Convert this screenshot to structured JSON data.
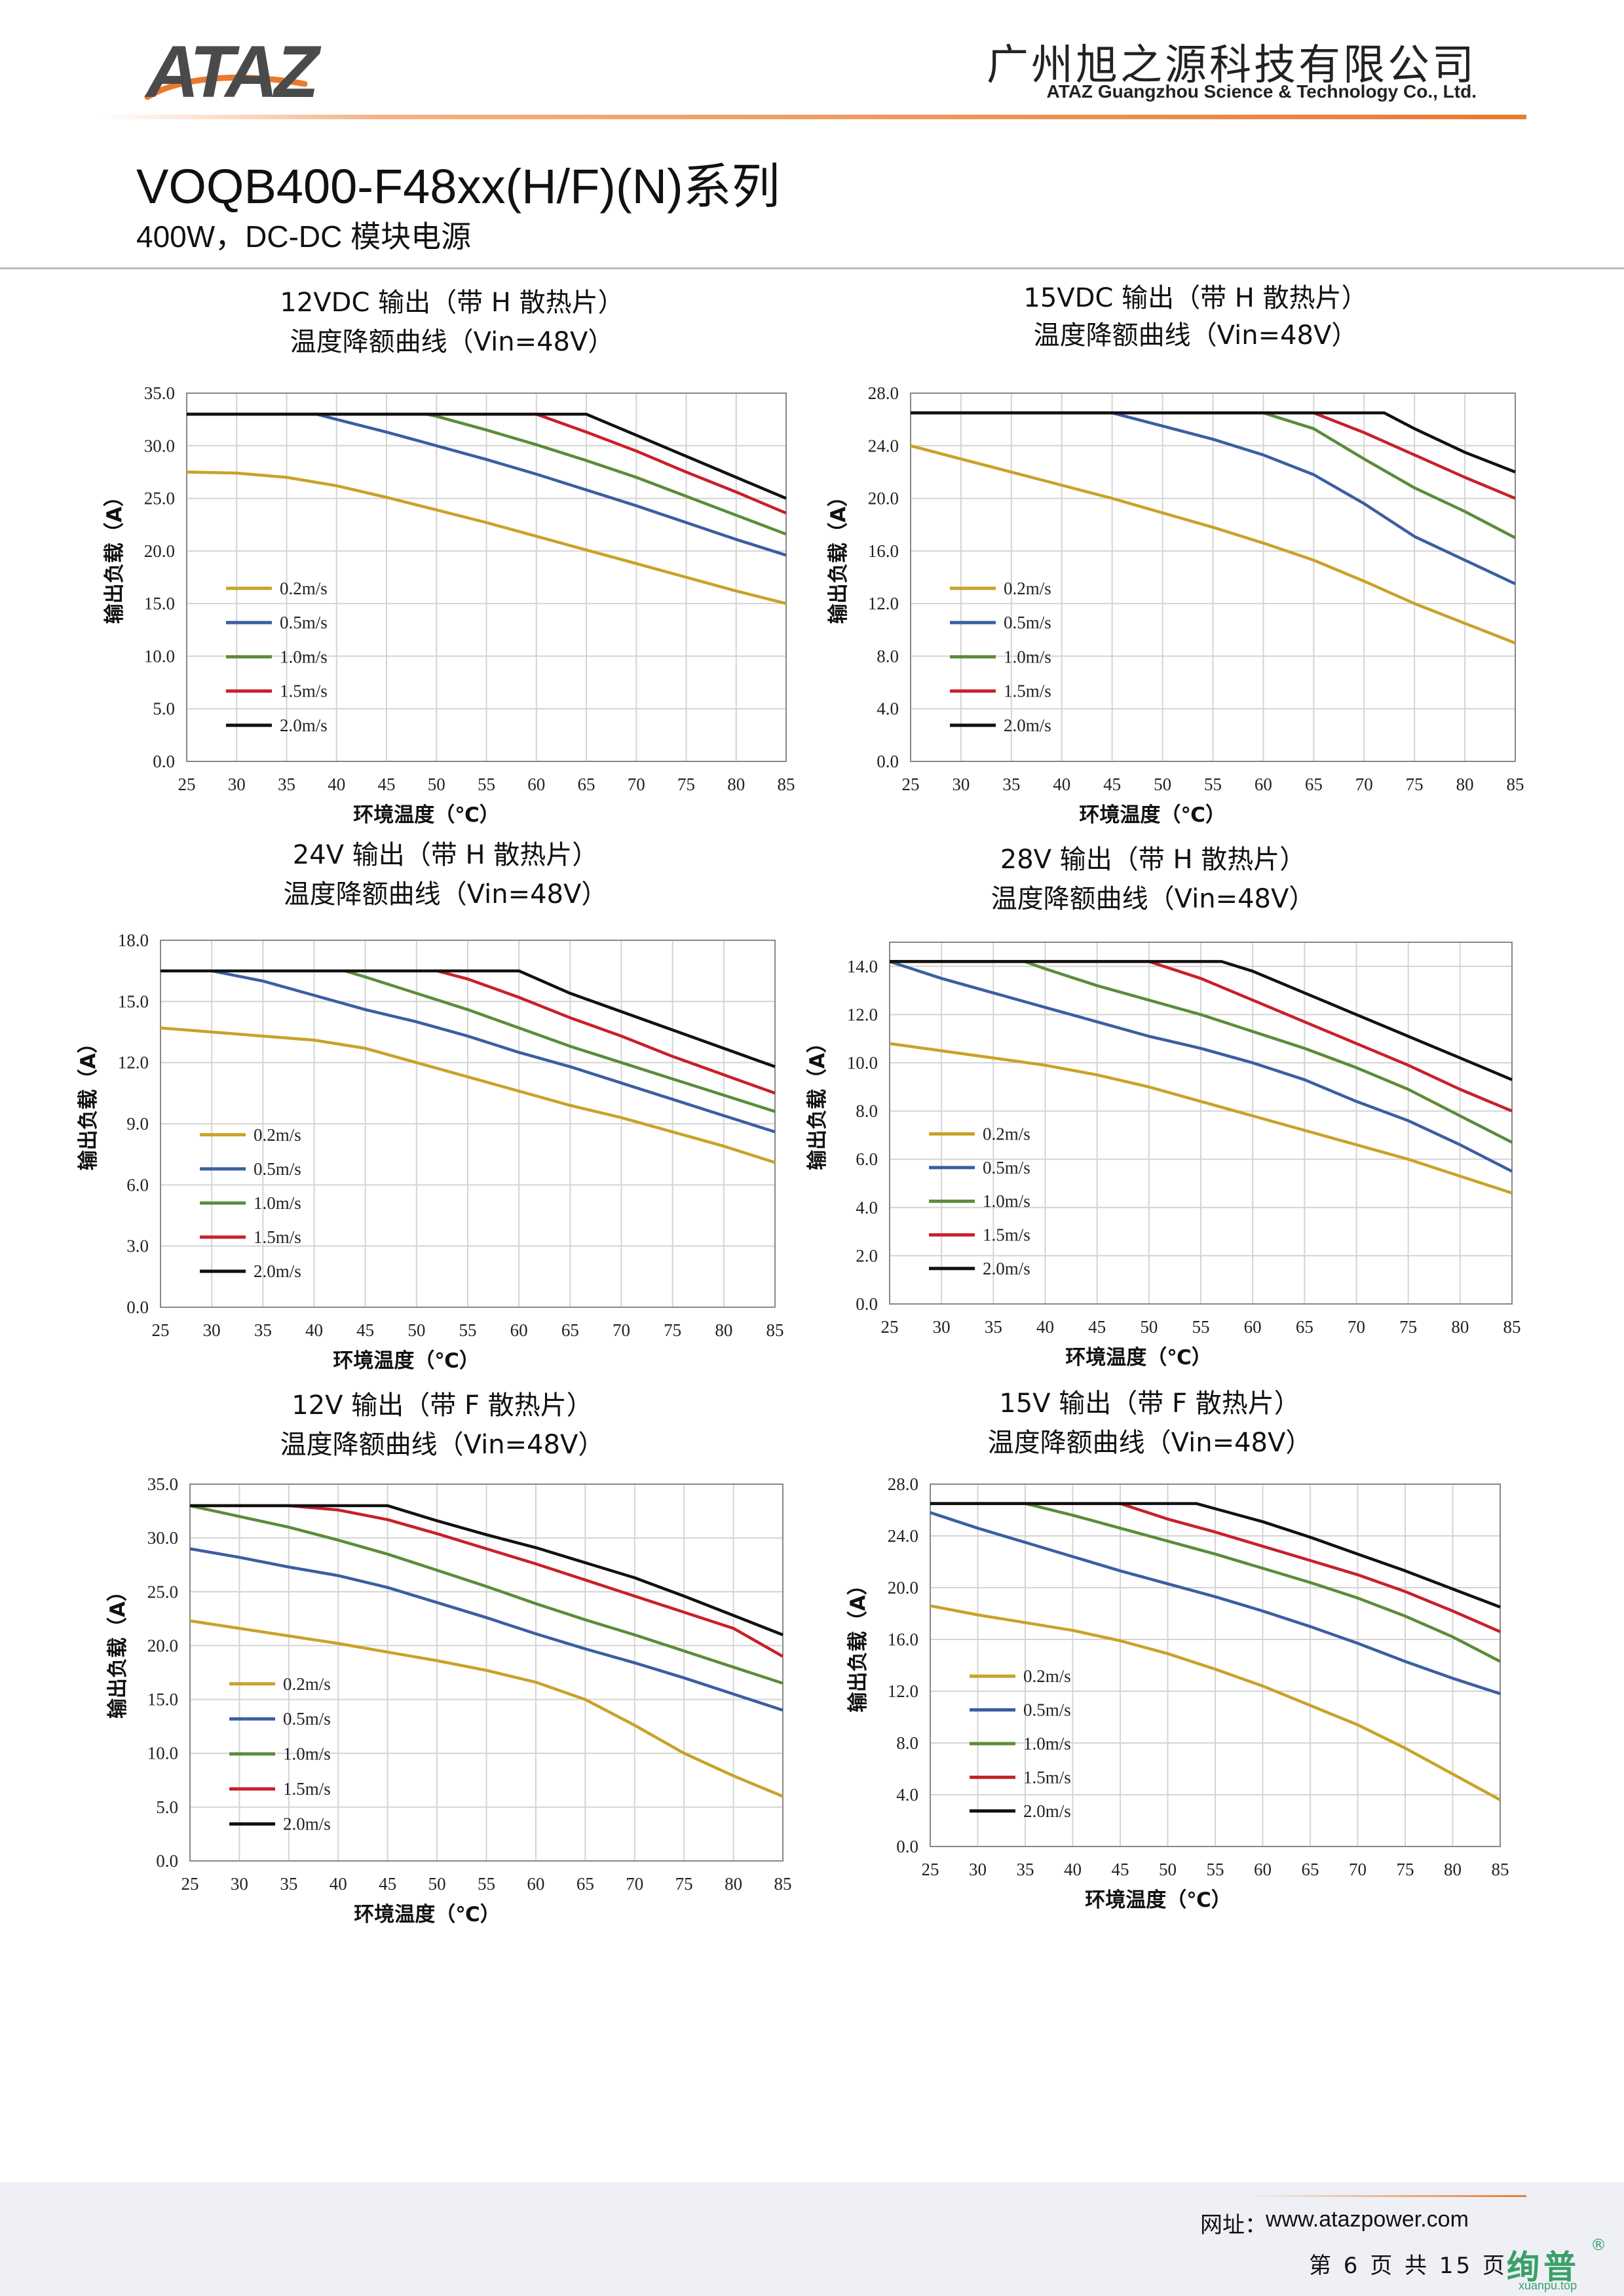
{
  "header": {
    "logo_text": "ATAZ",
    "company_cn": "广州旭之源科技有限公司",
    "company_en": "ATAZ Guangzhou Science & Technology Co., Ltd."
  },
  "document": {
    "series_title": "VOQB400-F48xx(H/F)(N)系列",
    "subtitle": "400W，DC-DC 模块电源"
  },
  "colors": {
    "0.2m/s": "#c9a227",
    "0.5m/s": "#3a5fa0",
    "1.0m/s": "#5b8c3a",
    "1.5m/s": "#c8202a",
    "2.0m/s": "#111111",
    "accent": "#e97a2e"
  },
  "chart_data": [
    {
      "type": "line",
      "title": "12VDC 输出（带 H 散热片）",
      "subtitle": "温度降额曲线（Vin=48V）",
      "xlabel": "环境温度（℃）",
      "ylabel": "输出负载（A）",
      "xlim": [
        25,
        85
      ],
      "ylim": [
        0,
        35
      ],
      "x_ticks": [
        "25",
        "30",
        "35",
        "40",
        "45",
        "50",
        "55",
        "60",
        "65",
        "70",
        "75",
        "80",
        "85"
      ],
      "y_ticks": [
        "0.0",
        "5.0",
        "10.0",
        "15.0",
        "20.0",
        "25.0",
        "30.0",
        "35.0"
      ],
      "legend_position": "left",
      "series": [
        {
          "name": "0.2m/s",
          "x": [
            25,
            30,
            35,
            40,
            45,
            50,
            55,
            60,
            65,
            70,
            75,
            80,
            85
          ],
          "values": [
            27.5,
            27.4,
            27.0,
            26.2,
            25.1,
            23.9,
            22.7,
            21.4,
            20.1,
            18.8,
            17.5,
            16.2,
            15.0
          ]
        },
        {
          "name": "0.5m/s",
          "x": [
            25,
            30,
            35,
            38,
            40,
            45,
            50,
            55,
            60,
            65,
            70,
            75,
            80,
            85
          ],
          "values": [
            33,
            33,
            33,
            33,
            32.5,
            31.3,
            30.0,
            28.7,
            27.3,
            25.8,
            24.3,
            22.7,
            21.1,
            19.6
          ]
        },
        {
          "name": "1.0m/s",
          "x": [
            25,
            35,
            45,
            49,
            50,
            55,
            60,
            65,
            70,
            75,
            80,
            85
          ],
          "values": [
            33,
            33,
            33,
            33,
            32.8,
            31.5,
            30.1,
            28.6,
            27.0,
            25.2,
            23.4,
            21.6
          ]
        },
        {
          "name": "1.5m/s",
          "x": [
            25,
            35,
            45,
            55,
            60,
            65,
            70,
            75,
            80,
            85
          ],
          "values": [
            33,
            33,
            33,
            33,
            33,
            31.3,
            29.5,
            27.5,
            25.6,
            23.6
          ]
        },
        {
          "name": "2.0m/s",
          "x": [
            25,
            35,
            45,
            55,
            65,
            70,
            75,
            80,
            85
          ],
          "values": [
            33,
            33,
            33,
            33,
            33,
            31.0,
            29.0,
            27.0,
            25.0
          ]
        }
      ]
    },
    {
      "type": "line",
      "title": "15VDC 输出（带 H 散热片）",
      "subtitle": "温度降额曲线（Vin=48V）",
      "xlabel": "环境温度（℃）",
      "ylabel": "输出负载（A）",
      "xlim": [
        25,
        85
      ],
      "ylim": [
        0,
        28
      ],
      "x_ticks": [
        "25",
        "30",
        "35",
        "40",
        "45",
        "50",
        "55",
        "60",
        "65",
        "70",
        "75",
        "80",
        "85"
      ],
      "y_ticks": [
        "0.0",
        "4.0",
        "8.0",
        "12.0",
        "16.0",
        "20.0",
        "24.0",
        "28.0"
      ],
      "legend_position": "left",
      "series": [
        {
          "name": "0.2m/s",
          "x": [
            25,
            30,
            35,
            40,
            45,
            50,
            55,
            60,
            65,
            70,
            75,
            80,
            85
          ],
          "values": [
            24.0,
            23.0,
            22.0,
            21.0,
            20.0,
            18.9,
            17.8,
            16.6,
            15.3,
            13.7,
            12.0,
            10.5,
            9.0
          ]
        },
        {
          "name": "0.5m/s",
          "x": [
            25,
            35,
            45,
            50,
            55,
            60,
            65,
            70,
            75,
            80,
            85
          ],
          "values": [
            26.5,
            26.5,
            26.5,
            25.5,
            24.5,
            23.3,
            21.8,
            19.6,
            17.1,
            15.3,
            13.5
          ]
        },
        {
          "name": "1.0m/s",
          "x": [
            25,
            35,
            45,
            55,
            60,
            65,
            70,
            75,
            80,
            85
          ],
          "values": [
            26.5,
            26.5,
            26.5,
            26.5,
            26.5,
            25.3,
            23.0,
            20.8,
            19.0,
            17.0
          ]
        },
        {
          "name": "1.5m/s",
          "x": [
            25,
            35,
            45,
            55,
            65,
            70,
            75,
            80,
            85
          ],
          "values": [
            26.5,
            26.5,
            26.5,
            26.5,
            26.5,
            25.0,
            23.3,
            21.6,
            20.0
          ]
        },
        {
          "name": "2.0m/s",
          "x": [
            25,
            35,
            45,
            55,
            65,
            72,
            75,
            80,
            85
          ],
          "values": [
            26.5,
            26.5,
            26.5,
            26.5,
            26.5,
            26.5,
            25.3,
            23.5,
            22.0
          ]
        }
      ]
    },
    {
      "type": "line",
      "title": "24V 输出（带 H 散热片）",
      "subtitle": "温度降额曲线（Vin=48V）",
      "xlabel": "环境温度（℃）",
      "ylabel": "输出负载（A）",
      "xlim": [
        25,
        85
      ],
      "ylim": [
        0,
        18
      ],
      "x_ticks": [
        "25",
        "30",
        "35",
        "40",
        "45",
        "50",
        "55",
        "60",
        "65",
        "70",
        "75",
        "80",
        "85"
      ],
      "y_ticks": [
        "0.0",
        "3.0",
        "6.0",
        "9.0",
        "12.0",
        "15.0",
        "18.0"
      ],
      "legend_position": "left",
      "series": [
        {
          "name": "0.2m/s",
          "x": [
            25,
            30,
            35,
            40,
            45,
            50,
            55,
            60,
            65,
            70,
            75,
            80,
            85
          ],
          "values": [
            13.7,
            13.5,
            13.3,
            13.1,
            12.7,
            12.0,
            11.3,
            10.6,
            9.9,
            9.3,
            8.6,
            7.9,
            7.1
          ]
        },
        {
          "name": "0.5m/s",
          "x": [
            25,
            30,
            35,
            40,
            45,
            50,
            55,
            60,
            65,
            70,
            75,
            80,
            85
          ],
          "values": [
            16.5,
            16.5,
            16.0,
            15.3,
            14.6,
            14.0,
            13.3,
            12.5,
            11.8,
            11.0,
            10.2,
            9.4,
            8.6
          ]
        },
        {
          "name": "1.0m/s",
          "x": [
            25,
            35,
            43,
            45,
            50,
            55,
            60,
            65,
            70,
            75,
            80,
            85
          ],
          "values": [
            16.5,
            16.5,
            16.5,
            16.2,
            15.4,
            14.6,
            13.7,
            12.8,
            12.0,
            11.2,
            10.4,
            9.6
          ]
        },
        {
          "name": "1.5m/s",
          "x": [
            25,
            35,
            45,
            52,
            55,
            60,
            65,
            70,
            75,
            80,
            85
          ],
          "values": [
            16.5,
            16.5,
            16.5,
            16.5,
            16.1,
            15.2,
            14.2,
            13.3,
            12.3,
            11.4,
            10.5
          ]
        },
        {
          "name": "2.0m/s",
          "x": [
            25,
            35,
            45,
            55,
            60,
            65,
            70,
            75,
            80,
            85
          ],
          "values": [
            16.5,
            16.5,
            16.5,
            16.5,
            16.5,
            15.4,
            14.5,
            13.6,
            12.7,
            11.8
          ]
        }
      ]
    },
    {
      "type": "line",
      "title": "28V 输出（带 H 散热片）",
      "subtitle": "温度降额曲线（Vin=48V）",
      "xlabel": "环境温度（℃）",
      "ylabel": "输出负载（A）",
      "xlim": [
        25,
        85
      ],
      "ylim": [
        0,
        15
      ],
      "x_ticks": [
        "25",
        "30",
        "35",
        "40",
        "45",
        "50",
        "55",
        "60",
        "65",
        "70",
        "75",
        "80",
        "85"
      ],
      "y_ticks": [
        "0.0",
        "2.0",
        "4.0",
        "6.0",
        "8.0",
        "10.0",
        "12.0",
        "14.0"
      ],
      "legend_position": "left",
      "series": [
        {
          "name": "0.2m/s",
          "x": [
            25,
            30,
            35,
            40,
            45,
            50,
            55,
            60,
            65,
            70,
            75,
            80,
            85
          ],
          "values": [
            10.8,
            10.5,
            10.2,
            9.9,
            9.5,
            9.0,
            8.4,
            7.8,
            7.2,
            6.6,
            6.0,
            5.3,
            4.6
          ]
        },
        {
          "name": "0.5m/s",
          "x": [
            25,
            30,
            35,
            40,
            45,
            50,
            55,
            60,
            65,
            70,
            75,
            80,
            85
          ],
          "values": [
            14.2,
            13.5,
            12.9,
            12.3,
            11.7,
            11.1,
            10.6,
            10.0,
            9.3,
            8.4,
            7.6,
            6.6,
            5.5
          ]
        },
        {
          "name": "1.0m/s",
          "x": [
            25,
            35,
            38,
            40,
            45,
            50,
            55,
            60,
            65,
            70,
            75,
            80,
            85
          ],
          "values": [
            14.2,
            14.2,
            14.2,
            13.9,
            13.2,
            12.6,
            12.0,
            11.3,
            10.6,
            9.8,
            8.9,
            7.8,
            6.7
          ]
        },
        {
          "name": "1.5m/s",
          "x": [
            25,
            35,
            45,
            50,
            55,
            60,
            65,
            70,
            75,
            80,
            85
          ],
          "values": [
            14.2,
            14.2,
            14.2,
            14.2,
            13.5,
            12.6,
            11.7,
            10.8,
            9.9,
            8.9,
            8.0
          ]
        },
        {
          "name": "2.0m/s",
          "x": [
            25,
            35,
            45,
            57,
            60,
            65,
            70,
            75,
            80,
            85
          ],
          "values": [
            14.2,
            14.2,
            14.2,
            14.2,
            13.8,
            12.9,
            12.0,
            11.1,
            10.2,
            9.3
          ]
        }
      ]
    },
    {
      "type": "line",
      "title": "12V 输出（带 F 散热片）",
      "subtitle": "温度降额曲线（Vin=48V）",
      "xlabel": "环境温度（℃）",
      "ylabel": "输出负载（A）",
      "xlim": [
        25,
        85
      ],
      "ylim": [
        0,
        35
      ],
      "x_ticks": [
        "25",
        "30",
        "35",
        "40",
        "45",
        "50",
        "55",
        "60",
        "65",
        "70",
        "75",
        "80",
        "85"
      ],
      "y_ticks": [
        "0.0",
        "5.0",
        "10.0",
        "15.0",
        "20.0",
        "25.0",
        "30.0",
        "35.0"
      ],
      "legend_position": "left",
      "series": [
        {
          "name": "0.2m/s",
          "x": [
            25,
            30,
            35,
            40,
            45,
            50,
            55,
            60,
            65,
            70,
            75,
            80,
            85
          ],
          "values": [
            22.3,
            21.6,
            20.9,
            20.2,
            19.4,
            18.6,
            17.7,
            16.6,
            15.0,
            12.6,
            10.0,
            7.9,
            6.0
          ]
        },
        {
          "name": "0.5m/s",
          "x": [
            25,
            30,
            35,
            40,
            45,
            50,
            55,
            60,
            65,
            70,
            75,
            80,
            85
          ],
          "values": [
            29.0,
            28.2,
            27.3,
            26.5,
            25.4,
            24.0,
            22.6,
            21.1,
            19.7,
            18.4,
            17.0,
            15.5,
            14.0
          ]
        },
        {
          "name": "1.0m/s",
          "x": [
            25,
            30,
            35,
            40,
            45,
            50,
            55,
            60,
            65,
            70,
            75,
            80,
            85
          ],
          "values": [
            33.0,
            32.0,
            31.0,
            29.8,
            28.5,
            27.0,
            25.5,
            23.9,
            22.4,
            21.0,
            19.5,
            18.0,
            16.5
          ]
        },
        {
          "name": "1.5m/s",
          "x": [
            25,
            30,
            35,
            40,
            45,
            50,
            55,
            60,
            65,
            70,
            75,
            80,
            85
          ],
          "values": [
            33.0,
            33.0,
            33.0,
            32.6,
            31.7,
            30.4,
            29.0,
            27.6,
            26.1,
            24.6,
            23.1,
            21.6,
            19.0
          ]
        },
        {
          "name": "2.0m/s",
          "x": [
            25,
            35,
            45,
            50,
            55,
            60,
            65,
            70,
            75,
            80,
            85
          ],
          "values": [
            33.0,
            33.0,
            33.0,
            31.6,
            30.3,
            29.1,
            27.7,
            26.3,
            24.6,
            22.8,
            21.0
          ]
        }
      ]
    },
    {
      "type": "line",
      "title": "15V 输出（带 F 散热片）",
      "subtitle": "温度降额曲线（Vin=48V）",
      "xlabel": "环境温度（℃）",
      "ylabel": "输出负载（A）",
      "xlim": [
        25,
        85
      ],
      "ylim": [
        0,
        28
      ],
      "x_ticks": [
        "25",
        "30",
        "35",
        "40",
        "45",
        "50",
        "55",
        "60",
        "65",
        "70",
        "75",
        "80",
        "85"
      ],
      "y_ticks": [
        "0.0",
        "4.0",
        "8.0",
        "12.0",
        "16.0",
        "20.0",
        "24.0",
        "28.0"
      ],
      "legend_position": "left",
      "series": [
        {
          "name": "0.2m/s",
          "x": [
            25,
            30,
            35,
            40,
            45,
            50,
            55,
            60,
            65,
            70,
            75,
            80,
            85
          ],
          "values": [
            18.6,
            17.9,
            17.3,
            16.7,
            15.9,
            14.9,
            13.7,
            12.4,
            10.9,
            9.4,
            7.6,
            5.6,
            3.6
          ]
        },
        {
          "name": "0.5m/s",
          "x": [
            25,
            30,
            35,
            40,
            45,
            50,
            55,
            60,
            65,
            70,
            75,
            80,
            85
          ],
          "values": [
            25.8,
            24.6,
            23.5,
            22.4,
            21.3,
            20.3,
            19.3,
            18.2,
            17.0,
            15.7,
            14.3,
            13.0,
            11.8
          ]
        },
        {
          "name": "1.0m/s",
          "x": [
            25,
            35,
            40,
            45,
            50,
            55,
            60,
            65,
            70,
            75,
            80,
            85
          ],
          "values": [
            26.5,
            26.5,
            25.6,
            24.6,
            23.6,
            22.6,
            21.5,
            20.4,
            19.2,
            17.8,
            16.2,
            14.3
          ]
        },
        {
          "name": "1.5m/s",
          "x": [
            25,
            35,
            45,
            50,
            55,
            60,
            65,
            70,
            75,
            80,
            85
          ],
          "values": [
            26.5,
            26.5,
            26.5,
            25.3,
            24.3,
            23.2,
            22.1,
            21.0,
            19.7,
            18.2,
            16.6
          ]
        },
        {
          "name": "2.0m/s",
          "x": [
            25,
            35,
            45,
            53,
            55,
            60,
            65,
            70,
            75,
            80,
            85
          ],
          "values": [
            26.5,
            26.5,
            26.5,
            26.5,
            26.1,
            25.1,
            23.9,
            22.6,
            21.3,
            19.9,
            18.5
          ]
        }
      ]
    }
  ],
  "footer": {
    "url_label": "网址：",
    "url": "www.atazpower.com",
    "page_text": "第 6 页 共 15 页",
    "watermark_cn": "绚普",
    "watermark_reg": "®",
    "watermark_url": "xuanpu.top"
  }
}
